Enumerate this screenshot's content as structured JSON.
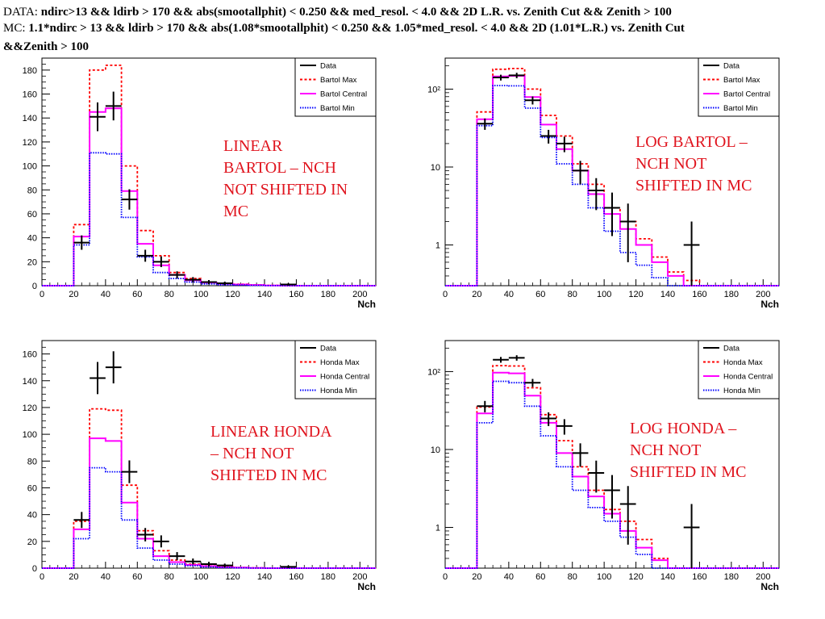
{
  "header": {
    "data_prefix": "DATA: ",
    "data_cuts": "ndirc>13 && ldirb > 170 && abs(smootallphit) < 0.250 && med_resol. < 4.0 && 2D L.R. vs. Zenith Cut && Zenith > 100",
    "mc_prefix": "MC: ",
    "mc_cuts": "1.1*ndirc > 13 && ldirb > 170 && abs(1.08*smootallphit) < 0.250 && 1.05*med_resol. < 4.0 && 2D (1.01*L.R.) vs. Zenith Cut",
    "mc_cuts_cont": "&&Zenith > 100"
  },
  "colors": {
    "data": "#000000",
    "max": "#ff0000",
    "central": "#ff00ff",
    "min": "#0000ff",
    "annotation": "#e0141e"
  },
  "chart_data": [
    {
      "type": "line",
      "subtype": "histogram",
      "annotation": "LINEAR BARTOL – NCH NOT SHIFTED IN MC",
      "annotation_lines": [
        "LINEAR",
        "BARTOL – NCH",
        "NOT SHIFTED IN",
        "MC"
      ],
      "xlabel": "Nch",
      "ylabel": "",
      "xlim": [
        0,
        210
      ],
      "ylim": [
        0,
        190
      ],
      "log_y": false,
      "x_ticks": [
        0,
        20,
        40,
        60,
        80,
        100,
        120,
        140,
        160,
        180,
        200
      ],
      "y_ticks": [
        0,
        20,
        40,
        60,
        80,
        100,
        120,
        140,
        160,
        180
      ],
      "legend_position": "top-right",
      "series": [
        {
          "name": "Data",
          "style": "data",
          "x": [
            25,
            35,
            45,
            55,
            65,
            75,
            85,
            95,
            105,
            115,
            155
          ],
          "y": [
            36,
            141,
            150,
            72,
            25,
            20,
            9,
            5,
            3,
            2,
            1
          ],
          "yerr": [
            6,
            12,
            12,
            8.5,
            5,
            4.5,
            3,
            2.2,
            1.7,
            1.4,
            1
          ]
        },
        {
          "name": "Bartol Max",
          "style": "max",
          "edges": [
            0,
            20,
            30,
            40,
            50,
            60,
            70,
            80,
            90,
            100,
            110,
            120,
            130,
            140,
            150,
            160,
            210
          ],
          "values": [
            0,
            51,
            180,
            184,
            100,
            46,
            25,
            11,
            6,
            3,
            2,
            1.2,
            0.7,
            0.3,
            0.1,
            0
          ]
        },
        {
          "name": "Bartol Central",
          "style": "central",
          "edges": [
            0,
            20,
            30,
            40,
            50,
            60,
            70,
            80,
            90,
            100,
            110,
            120,
            130,
            140,
            150,
            160,
            210
          ],
          "values": [
            0,
            41,
            145,
            148,
            79,
            35,
            17,
            9,
            4.5,
            2.5,
            1.6,
            1,
            0.6,
            0.2,
            0.05,
            0
          ]
        },
        {
          "name": "Bartol Min",
          "style": "min",
          "edges": [
            0,
            20,
            30,
            40,
            50,
            60,
            70,
            80,
            90,
            100,
            110,
            120,
            130,
            140,
            150,
            160,
            210
          ],
          "values": [
            0,
            34,
            111,
            110,
            57,
            24,
            11,
            6,
            3,
            1.5,
            0.8,
            0.5,
            0.3,
            0.1,
            0.02,
            0
          ]
        }
      ]
    },
    {
      "type": "line",
      "subtype": "histogram",
      "annotation": "LOG BARTOL – NCH NOT SHIFTED IN MC",
      "annotation_lines": [
        "LOG BARTOL –",
        "NCH NOT",
        "SHIFTED IN MC"
      ],
      "xlabel": "Nch",
      "ylabel": "",
      "xlim": [
        0,
        210
      ],
      "ylim": [
        0.3,
        250
      ],
      "log_y": true,
      "x_ticks": [
        0,
        20,
        40,
        60,
        80,
        100,
        120,
        140,
        160,
        180,
        200
      ],
      "y_ticks_labels": [
        "1",
        "10",
        "10²"
      ],
      "y_ticks": [
        1,
        10,
        100
      ],
      "legend_position": "top-right",
      "series": [
        {
          "name": "Data",
          "style": "data",
          "x": [
            25,
            35,
            45,
            55,
            65,
            75,
            85,
            95,
            105,
            115,
            155
          ],
          "y": [
            36,
            141,
            150,
            72,
            25,
            20,
            9,
            5,
            3,
            2,
            1
          ],
          "yerr": [
            6,
            12,
            12,
            8.5,
            5,
            4.5,
            3,
            2.2,
            1.7,
            1.4,
            1
          ]
        },
        {
          "name": "Bartol Max",
          "style": "max",
          "edges": [
            0,
            20,
            30,
            40,
            50,
            60,
            70,
            80,
            90,
            100,
            110,
            120,
            130,
            140,
            150,
            160,
            210
          ],
          "values": [
            0.3,
            51,
            180,
            184,
            100,
            46,
            25,
            11,
            6,
            3,
            2,
            1.2,
            0.7,
            0.45,
            0.35,
            0.3
          ]
        },
        {
          "name": "Bartol Central",
          "style": "central",
          "edges": [
            0,
            20,
            30,
            40,
            50,
            60,
            70,
            80,
            90,
            100,
            110,
            120,
            130,
            140,
            150,
            160,
            210
          ],
          "values": [
            0.3,
            41,
            145,
            148,
            79,
            35,
            17,
            9,
            4.5,
            2.5,
            1.6,
            1,
            0.6,
            0.4,
            0.3,
            0.3
          ]
        },
        {
          "name": "Bartol Min",
          "style": "min",
          "edges": [
            0,
            20,
            30,
            40,
            50,
            60,
            70,
            80,
            90,
            100,
            110,
            120,
            130,
            140,
            150,
            160,
            210
          ],
          "values": [
            0.3,
            34,
            111,
            110,
            57,
            24,
            11,
            6,
            3,
            1.5,
            0.8,
            0.55,
            0.38,
            0.3,
            0.3,
            0.3
          ]
        }
      ]
    },
    {
      "type": "line",
      "subtype": "histogram",
      "annotation": "LINEAR HONDA – NCH NOT SHIFTED IN MC",
      "annotation_lines": [
        "LINEAR HONDA",
        "– NCH NOT",
        "SHIFTED IN MC"
      ],
      "xlabel": "Nch",
      "ylabel": "",
      "xlim": [
        0,
        210
      ],
      "ylim": [
        0,
        170
      ],
      "log_y": false,
      "x_ticks": [
        0,
        20,
        40,
        60,
        80,
        100,
        120,
        140,
        160,
        180,
        200
      ],
      "y_ticks": [
        0,
        20,
        40,
        60,
        80,
        100,
        120,
        140,
        160
      ],
      "legend_position": "top-right",
      "series": [
        {
          "name": "Data",
          "style": "data",
          "x": [
            25,
            35,
            45,
            55,
            65,
            75,
            85,
            95,
            105,
            115,
            155
          ],
          "y": [
            36,
            142,
            150,
            72,
            25,
            20,
            9,
            5,
            3,
            2,
            1
          ],
          "yerr": [
            6,
            12,
            12,
            8.5,
            5,
            4.5,
            3,
            2.2,
            1.7,
            1.4,
            1
          ]
        },
        {
          "name": "Honda Max",
          "style": "max",
          "edges": [
            0,
            20,
            30,
            40,
            50,
            60,
            70,
            80,
            90,
            100,
            110,
            120,
            130,
            140,
            210
          ],
          "values": [
            0,
            35,
            119,
            118,
            62,
            28,
            13,
            6,
            3,
            1.7,
            1.2,
            0.5,
            0.2,
            0
          ]
        },
        {
          "name": "Honda Central",
          "style": "central",
          "edges": [
            0,
            20,
            30,
            40,
            50,
            60,
            70,
            80,
            90,
            100,
            110,
            120,
            130,
            140,
            210
          ],
          "values": [
            0,
            29,
            97,
            95,
            49,
            22,
            9,
            4.5,
            2.5,
            1.5,
            0.8,
            0.4,
            0.1,
            0
          ]
        },
        {
          "name": "Honda Min",
          "style": "min",
          "edges": [
            0,
            20,
            30,
            40,
            50,
            60,
            70,
            80,
            90,
            100,
            110,
            120,
            130,
            140,
            210
          ],
          "values": [
            0,
            22,
            75,
            72,
            36,
            15,
            6,
            3,
            1.8,
            0.9,
            0.4,
            0.2,
            0.05,
            0
          ]
        }
      ]
    },
    {
      "type": "line",
      "subtype": "histogram",
      "annotation": "LOG HONDA – NCH NOT SHIFTED IN MC",
      "annotation_lines": [
        "LOG HONDA –",
        "NCH NOT",
        "SHIFTED IN MC"
      ],
      "xlabel": "Nch",
      "ylabel": "",
      "xlim": [
        0,
        210
      ],
      "ylim": [
        0.3,
        250
      ],
      "log_y": true,
      "x_ticks": [
        0,
        20,
        40,
        60,
        80,
        100,
        120,
        140,
        160,
        180,
        200
      ],
      "y_ticks_labels": [
        "1",
        "10",
        "10²"
      ],
      "y_ticks": [
        1,
        10,
        100
      ],
      "legend_position": "top-right",
      "series": [
        {
          "name": "Data",
          "style": "data",
          "x": [
            25,
            35,
            45,
            55,
            65,
            75,
            85,
            95,
            105,
            115,
            155
          ],
          "y": [
            36,
            142,
            150,
            72,
            25,
            20,
            9,
            5,
            3,
            2,
            1
          ],
          "yerr": [
            6,
            12,
            12,
            8.5,
            5,
            4.5,
            3,
            2.2,
            1.7,
            1.4,
            1
          ]
        },
        {
          "name": "Honda Max",
          "style": "max",
          "edges": [
            0,
            20,
            30,
            40,
            50,
            60,
            70,
            80,
            90,
            100,
            110,
            120,
            130,
            140,
            150,
            210
          ],
          "values": [
            0.3,
            35,
            119,
            118,
            62,
            28,
            13,
            6,
            3,
            1.7,
            1.2,
            0.7,
            0.4,
            0.3,
            0.3
          ]
        },
        {
          "name": "Honda Central",
          "style": "central",
          "edges": [
            0,
            20,
            30,
            40,
            50,
            60,
            70,
            80,
            90,
            100,
            110,
            120,
            130,
            140,
            150,
            210
          ],
          "values": [
            0.3,
            29,
            97,
            95,
            49,
            22,
            9,
            4.5,
            2.5,
            1.5,
            0.9,
            0.55,
            0.38,
            0.3,
            0.3
          ]
        },
        {
          "name": "Honda Min",
          "style": "min",
          "edges": [
            0,
            20,
            30,
            40,
            50,
            60,
            70,
            80,
            90,
            100,
            110,
            120,
            130,
            140,
            150,
            210
          ],
          "values": [
            0.3,
            22,
            75,
            72,
            36,
            15,
            6,
            3,
            1.8,
            1.2,
            0.75,
            0.45,
            0.3,
            0.3,
            0.3
          ]
        }
      ]
    }
  ]
}
